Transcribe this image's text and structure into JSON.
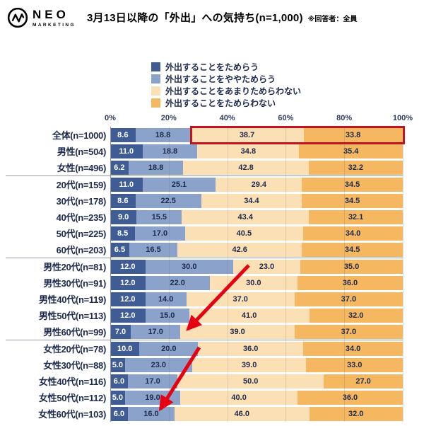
{
  "header": {
    "logo": {
      "name": "NEO",
      "sub": "MARKETING"
    },
    "title": "3月13日以降の「外出」への気持ち(n=1,000)",
    "note": "※回答者：全員"
  },
  "chart_data": {
    "type": "bar",
    "stacked": true,
    "orientation": "horizontal",
    "title": "3月13日以降の「外出」への気持ち(n=1,000)",
    "unit": "%",
    "xlim": [
      0,
      100
    ],
    "x_ticks": [
      "0%",
      "20%",
      "40%",
      "60%",
      "80%",
      "100%"
    ],
    "grid": true,
    "legend_position": "top-center",
    "categories": [
      "全体(n=1000)",
      "男性(n=504)",
      "女性(n=496)",
      "20代(n=159)",
      "30代(n=178)",
      "40代(n=235)",
      "50代(n=225)",
      "60代(n=203)",
      "男性20代(n=81)",
      "男性30代(n=91)",
      "男性40代(n=119)",
      "男性50代(n=113)",
      "男性60代(n=99)",
      "女性20代(n=78)",
      "女性30代(n=88)",
      "女性40代(n=116)",
      "女性50代(n=112)",
      "女性60代(n=103)"
    ],
    "series": [
      {
        "name": "外出することをためらう",
        "color": "#3f5c94",
        "values": [
          8.6,
          11.0,
          6.2,
          11.0,
          8.6,
          9.0,
          8.5,
          6.5,
          12.0,
          12.0,
          12.0,
          12.0,
          7.0,
          10.0,
          5.0,
          6.0,
          5.0,
          6.0
        ]
      },
      {
        "name": "外出することをややためらう",
        "color": "#8ba3cb",
        "values": [
          18.8,
          18.8,
          18.8,
          25.1,
          22.5,
          15.5,
          17.0,
          16.5,
          30.0,
          22.0,
          14.0,
          15.0,
          17.0,
          20.0,
          23.0,
          17.0,
          19.0,
          16.0
        ]
      },
      {
        "name": "外出することをあまりためらわない",
        "color": "#fbe0b6",
        "values": [
          38.7,
          34.8,
          42.8,
          29.4,
          34.4,
          43.4,
          40.5,
          42.6,
          23.0,
          30.0,
          37.0,
          41.0,
          39.0,
          36.0,
          39.0,
          50.0,
          40.0,
          46.0
        ]
      },
      {
        "name": "外出することをためらわない",
        "color": "#f5b860",
        "values": [
          33.8,
          35.4,
          32.2,
          34.5,
          34.5,
          32.1,
          34.0,
          34.5,
          35.0,
          36.0,
          37.0,
          32.0,
          37.0,
          34.0,
          33.0,
          27.0,
          36.0,
          32.0
        ]
      }
    ],
    "separators_after": [
      2,
      7,
      12
    ],
    "highlight": {
      "row_index": 0,
      "from_series": 2,
      "color": "#c11420"
    },
    "value_text_colors": {
      "first_series": "#ffffff",
      "others": "#1d2a4d"
    }
  },
  "annotations": {
    "arrow_color": "#e60012",
    "arrows": [
      {
        "name": "male-age-trend-arrow",
        "from": [
          344,
          196
        ],
        "to": [
          258,
          286
        ]
      },
      {
        "name": "female-age-trend-arrow",
        "from": [
          274,
          312
        ],
        "to": [
          219,
          399
        ]
      }
    ]
  }
}
